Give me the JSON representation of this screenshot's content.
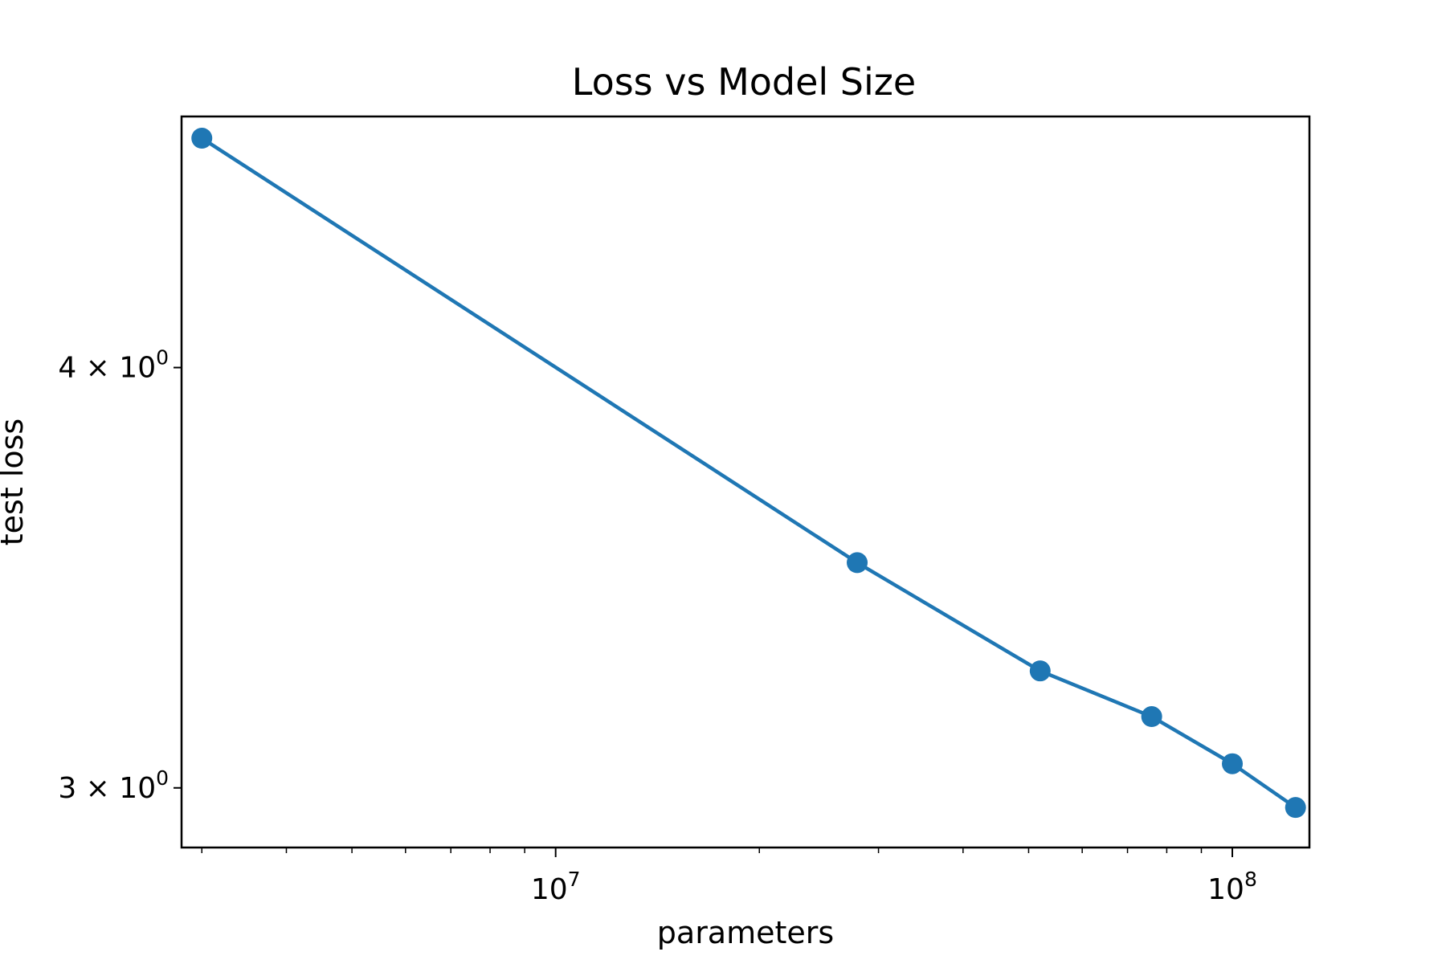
{
  "chart_data": {
    "type": "line",
    "title": "Loss vs Model Size",
    "xlabel": "parameters",
    "ylabel": "test loss",
    "xscale": "log",
    "yscale": "log",
    "xlim": [
      2800000,
      130000000
    ],
    "ylim": [
      2.88,
      4.75
    ],
    "grid": false,
    "color": "#1f77b4",
    "marker": "circle",
    "x_ticks": [
      {
        "value": 10000000,
        "base": "10",
        "exp": "7"
      },
      {
        "value": 100000000,
        "base": "10",
        "exp": "8"
      }
    ],
    "y_ticks": [
      {
        "value": 3,
        "base": "3 × 10",
        "exp": "0"
      },
      {
        "value": 4,
        "base": "4 × 10",
        "exp": "0"
      }
    ],
    "series": [
      {
        "x": [
          3000000,
          27900000,
          52000000,
          76000000,
          100000000,
          124000000
        ],
        "y": [
          4.68,
          3.5,
          3.25,
          3.15,
          3.05,
          2.96
        ]
      }
    ]
  }
}
